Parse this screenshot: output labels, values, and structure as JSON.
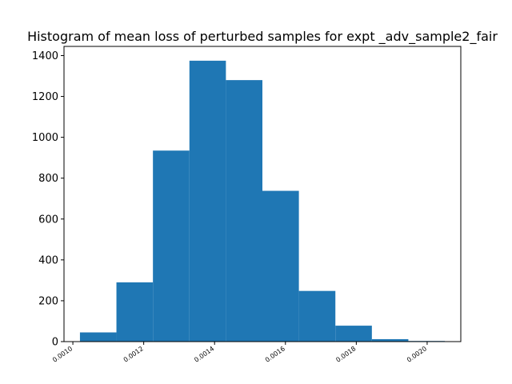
{
  "chart_data": {
    "type": "bar",
    "title": "Histogram of mean loss of perturbed samples for expt _adv_sample2_fair",
    "xlabel": "",
    "ylabel": "",
    "bin_edges": [
      0.00102,
      0.001123,
      0.001226,
      0.001329,
      0.001432,
      0.001535,
      0.001638,
      0.001741,
      0.001844,
      0.001947,
      0.00205
    ],
    "values": [
      45,
      290,
      935,
      1375,
      1280,
      738,
      248,
      78,
      12,
      3
    ],
    "xlim": [
      0.000975,
      0.002095
    ],
    "ylim": [
      0,
      1445
    ],
    "xticks": [
      0.001,
      0.0012,
      0.0014,
      0.0016,
      0.0018,
      0.002
    ],
    "xtick_labels": [
      "0.0010",
      "0.0012",
      "0.0014",
      "0.0016",
      "0.0018",
      "0.0020"
    ],
    "yticks": [
      0,
      200,
      400,
      600,
      800,
      1000,
      1200,
      1400
    ],
    "ytick_labels": [
      "0",
      "200",
      "400",
      "600",
      "800",
      "1000",
      "1200",
      "1400"
    ],
    "bar_color": "#1f77b4",
    "grid": false,
    "legend": "none"
  }
}
